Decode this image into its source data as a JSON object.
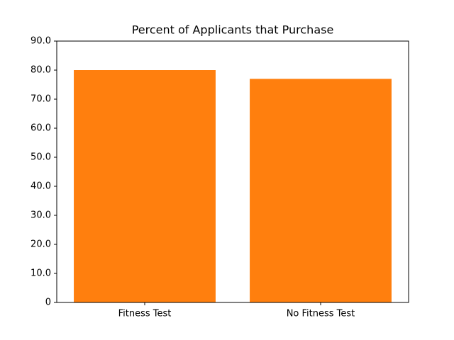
{
  "chart_data": {
    "type": "bar",
    "title": "Percent of Applicants that Purchase",
    "categories": [
      "Fitness Test",
      "No Fitness Test"
    ],
    "values": [
      80,
      77
    ],
    "color": "#ff7f0e",
    "ylim": [
      0,
      90
    ],
    "yticks": [
      0,
      {
        "value": 10,
        "label": "10.0"
      },
      {
        "value": 20,
        "label": "20.0"
      },
      {
        "value": 30,
        "label": "30.0"
      },
      {
        "value": 40,
        "label": "40.0"
      },
      {
        "value": 50,
        "label": "50.0"
      },
      {
        "value": 60,
        "label": "60.0"
      },
      {
        "value": 70,
        "label": "70.0"
      },
      {
        "value": 80,
        "label": "80.0"
      },
      {
        "value": 90,
        "label": "90.0"
      }
    ],
    "grid": false
  }
}
